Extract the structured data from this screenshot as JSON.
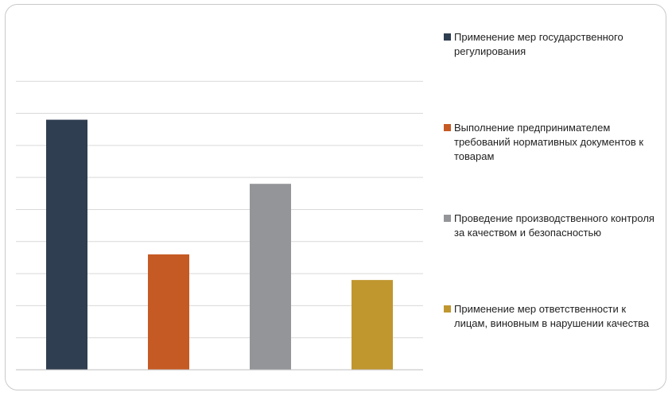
{
  "chart_data": {
    "type": "bar",
    "title": "",
    "xlabel": "",
    "ylabel": "",
    "ylim": [
      0,
      9.6
    ],
    "grid": true,
    "legend_position": "right",
    "categories": [
      ""
    ],
    "series": [
      {
        "name": "Применение мер государственного регулирования",
        "values": [
          7.8
        ],
        "color": "#2f3e50"
      },
      {
        "name": "Выполнение предпринимателем требований нормативных документов к товарам",
        "values": [
          3.6
        ],
        "color": "#c65a24"
      },
      {
        "name": "Проведение производственного контроля за качеством и безопасностью",
        "values": [
          5.8
        ],
        "color": "#939598"
      },
      {
        "name": "Применение мер ответственности к лицам, виновным в нарушении качества",
        "values": [
          2.8
        ],
        "color": "#c0962f"
      }
    ]
  }
}
